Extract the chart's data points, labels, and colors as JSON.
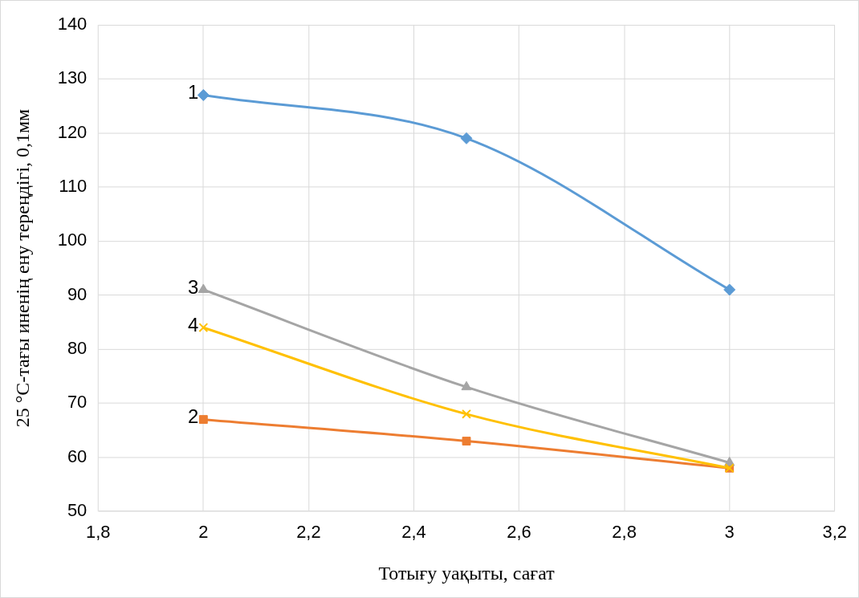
{
  "chart_data": {
    "type": "line",
    "xlabel": "Тотығу уақыты, сағат",
    "ylabel": "25 °С-тағы иненің ену тереңдігі, 0,1мм",
    "x": [
      2,
      2.5,
      3
    ],
    "series": [
      {
        "name": "1",
        "color": "#5b9bd5",
        "marker": "diamond",
        "values": [
          127,
          119,
          91
        ]
      },
      {
        "name": "2",
        "color": "#ed7d31",
        "marker": "square",
        "values": [
          67,
          63,
          58
        ]
      },
      {
        "name": "3",
        "color": "#a5a5a5",
        "marker": "triangle",
        "values": [
          91,
          73,
          59
        ]
      },
      {
        "name": "4",
        "color": "#ffc000",
        "marker": "cross",
        "values": [
          84,
          68,
          58
        ]
      }
    ],
    "xlim": [
      1.8,
      3.2
    ],
    "xticks": [
      {
        "value": 1.8,
        "label": "1,8"
      },
      2,
      {
        "value": 2.2,
        "label": "2,2"
      },
      {
        "value": 2.4,
        "label": "2,4"
      },
      {
        "value": 2.6,
        "label": "2,6"
      },
      {
        "value": 2.8,
        "label": "2,8"
      },
      3,
      {
        "value": 3.2,
        "label": "3,2"
      }
    ],
    "ylim": [
      50,
      140
    ],
    "yticks": [
      50,
      60,
      70,
      80,
      90,
      100,
      110,
      120,
      130,
      140
    ],
    "grid": true,
    "legend": false,
    "line_style": "solid"
  }
}
